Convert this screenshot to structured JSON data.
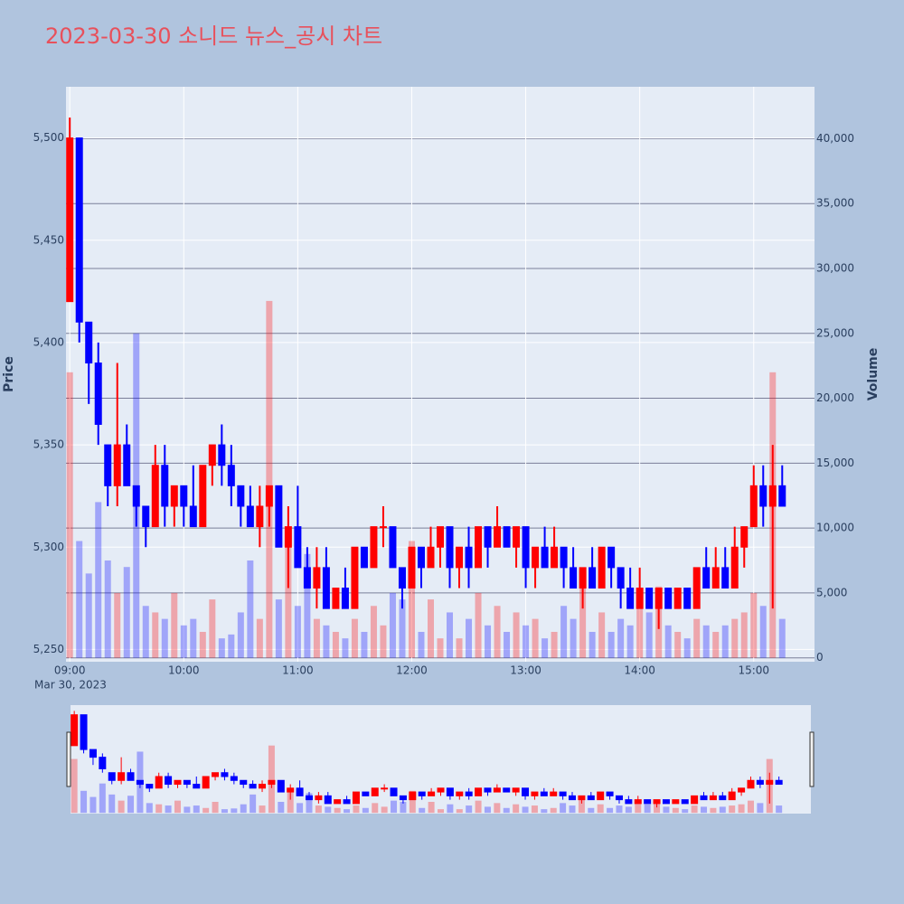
{
  "chart_data": {
    "type": "candlestick",
    "title": "2023-03-30 소니드 뉴스_공시 차트",
    "y_label": "Price",
    "y2_label": "Volume",
    "x_sublabel": "Mar 30, 2023",
    "increasing_color": "#ff0000",
    "decreasing_color": "#0000ff",
    "x": [
      "09:00",
      "09:05",
      "09:10",
      "09:15",
      "09:20",
      "09:25",
      "09:30",
      "09:35",
      "09:40",
      "09:45",
      "09:50",
      "09:55",
      "10:00",
      "10:05",
      "10:10",
      "10:15",
      "10:20",
      "10:25",
      "10:30",
      "10:35",
      "10:40",
      "10:45",
      "10:50",
      "10:55",
      "11:00",
      "11:05",
      "11:10",
      "11:15",
      "11:20",
      "11:25",
      "11:30",
      "11:35",
      "11:40",
      "11:45",
      "11:50",
      "11:55",
      "12:00",
      "12:05",
      "12:10",
      "12:15",
      "12:20",
      "12:25",
      "12:30",
      "12:35",
      "12:40",
      "12:45",
      "12:50",
      "12:55",
      "13:00",
      "13:05",
      "13:10",
      "13:15",
      "13:20",
      "13:25",
      "13:30",
      "13:35",
      "13:40",
      "13:45",
      "13:50",
      "13:55",
      "14:00",
      "14:05",
      "14:10",
      "14:15",
      "14:20",
      "14:25",
      "14:30",
      "14:35",
      "14:40",
      "14:45",
      "14:50",
      "14:55",
      "15:00",
      "15:05",
      "15:10",
      "15:15"
    ],
    "open": [
      5420,
      5500,
      5410,
      5390,
      5350,
      5330,
      5350,
      5330,
      5320,
      5310,
      5340,
      5320,
      5330,
      5320,
      5310,
      5340,
      5350,
      5340,
      5330,
      5320,
      5310,
      5320,
      5330,
      5300,
      5310,
      5290,
      5280,
      5290,
      5270,
      5280,
      5270,
      5300,
      5290,
      5310,
      5310,
      5290,
      5280,
      5300,
      5290,
      5300,
      5310,
      5290,
      5300,
      5290,
      5310,
      5300,
      5310,
      5300,
      5310,
      5290,
      5300,
      5290,
      5300,
      5290,
      5280,
      5290,
      5280,
      5300,
      5290,
      5280,
      5270,
      5280,
      5270,
      5280,
      5270,
      5280,
      5270,
      5290,
      5280,
      5290,
      5280,
      5300,
      5310,
      5330,
      5320,
      5330
    ],
    "high": [
      5510,
      5500,
      5410,
      5400,
      5350,
      5390,
      5360,
      5330,
      5320,
      5350,
      5350,
      5330,
      5330,
      5340,
      5340,
      5350,
      5360,
      5350,
      5330,
      5330,
      5330,
      5330,
      5330,
      5320,
      5330,
      5300,
      5300,
      5300,
      5280,
      5290,
      5300,
      5300,
      5310,
      5320,
      5310,
      5290,
      5300,
      5300,
      5310,
      5310,
      5310,
      5300,
      5310,
      5310,
      5310,
      5320,
      5310,
      5310,
      5310,
      5300,
      5310,
      5310,
      5300,
      5300,
      5290,
      5300,
      5300,
      5300,
      5290,
      5290,
      5290,
      5280,
      5280,
      5280,
      5280,
      5280,
      5290,
      5300,
      5300,
      5300,
      5310,
      5310,
      5340,
      5340,
      5350,
      5340
    ],
    "low": [
      5420,
      5400,
      5370,
      5350,
      5320,
      5320,
      5330,
      5310,
      5300,
      5310,
      5310,
      5310,
      5310,
      5310,
      5310,
      5330,
      5330,
      5320,
      5310,
      5310,
      5300,
      5310,
      5300,
      5280,
      5290,
      5280,
      5270,
      5270,
      5270,
      5270,
      5270,
      5290,
      5290,
      5300,
      5290,
      5270,
      5280,
      5280,
      5290,
      5290,
      5280,
      5280,
      5280,
      5290,
      5290,
      5300,
      5300,
      5290,
      5280,
      5280,
      5290,
      5290,
      5280,
      5280,
      5270,
      5280,
      5280,
      5280,
      5270,
      5270,
      5270,
      5270,
      5260,
      5270,
      5270,
      5270,
      5270,
      5280,
      5280,
      5280,
      5280,
      5290,
      5310,
      5310,
      5270,
      5320
    ],
    "close": [
      5500,
      5410,
      5390,
      5360,
      5330,
      5350,
      5330,
      5320,
      5310,
      5340,
      5320,
      5330,
      5320,
      5310,
      5340,
      5350,
      5340,
      5330,
      5320,
      5310,
      5320,
      5330,
      5300,
      5310,
      5290,
      5280,
      5290,
      5270,
      5280,
      5270,
      5300,
      5290,
      5310,
      5310,
      5290,
      5280,
      5300,
      5290,
      5300,
      5310,
      5290,
      5300,
      5290,
      5310,
      5300,
      5310,
      5300,
      5310,
      5290,
      5300,
      5290,
      5300,
      5290,
      5280,
      5290,
      5280,
      5300,
      5290,
      5280,
      5270,
      5280,
      5270,
      5280,
      5270,
      5280,
      5270,
      5290,
      5280,
      5290,
      5280,
      5300,
      5310,
      5330,
      5320,
      5330,
      5320
    ],
    "volume": [
      22000,
      9000,
      6500,
      12000,
      7500,
      5000,
      7000,
      25000,
      4000,
      3500,
      3000,
      5000,
      2500,
      3000,
      2000,
      4500,
      1500,
      1800,
      3500,
      7500,
      3000,
      27500,
      4500,
      9000,
      4000,
      8000,
      3000,
      2500,
      2000,
      1500,
      3000,
      2000,
      4000,
      2500,
      5000,
      4500,
      9000,
      2000,
      4500,
      1500,
      3500,
      1500,
      3000,
      5000,
      2500,
      4000,
      2000,
      3500,
      2500,
      3000,
      1500,
      2000,
      4000,
      3000,
      6000,
      2000,
      3500,
      2000,
      3000,
      2500,
      5000,
      3500,
      5500,
      2500,
      2000,
      1500,
      3000,
      2500,
      2000,
      2500,
      3000,
      3500,
      5000,
      4000,
      22000,
      3000
    ],
    "xlim": [
      "08:58",
      "15:32"
    ],
    "xticks": [
      "09:00",
      "10:00",
      "11:00",
      "12:00",
      "13:00",
      "14:00",
      "15:00"
    ],
    "ylim": [
      5244,
      5525
    ],
    "yticks": [
      {
        "value": 5250,
        "label": "5,250"
      },
      {
        "value": 5300,
        "label": "5,300"
      },
      {
        "value": 5350,
        "label": "5,350"
      },
      {
        "value": 5400,
        "label": "5,400"
      },
      {
        "value": 5450,
        "label": "5,450"
      },
      {
        "value": 5500,
        "label": "5,500"
      }
    ],
    "y2lim": [
      -300,
      44000
    ],
    "y2ticks": [
      0,
      {
        "value": 5000,
        "label": "5,000"
      },
      {
        "value": 10000,
        "label": "10,000"
      },
      {
        "value": 15000,
        "label": "15,000"
      },
      {
        "value": 20000,
        "label": "20,000"
      },
      {
        "value": 25000,
        "label": "25,000"
      },
      {
        "value": 30000,
        "label": "30,000"
      },
      {
        "value": 35000,
        "label": "35,000"
      },
      {
        "value": 40000,
        "label": "40,000"
      }
    ],
    "grid": true,
    "range_slider": true
  }
}
